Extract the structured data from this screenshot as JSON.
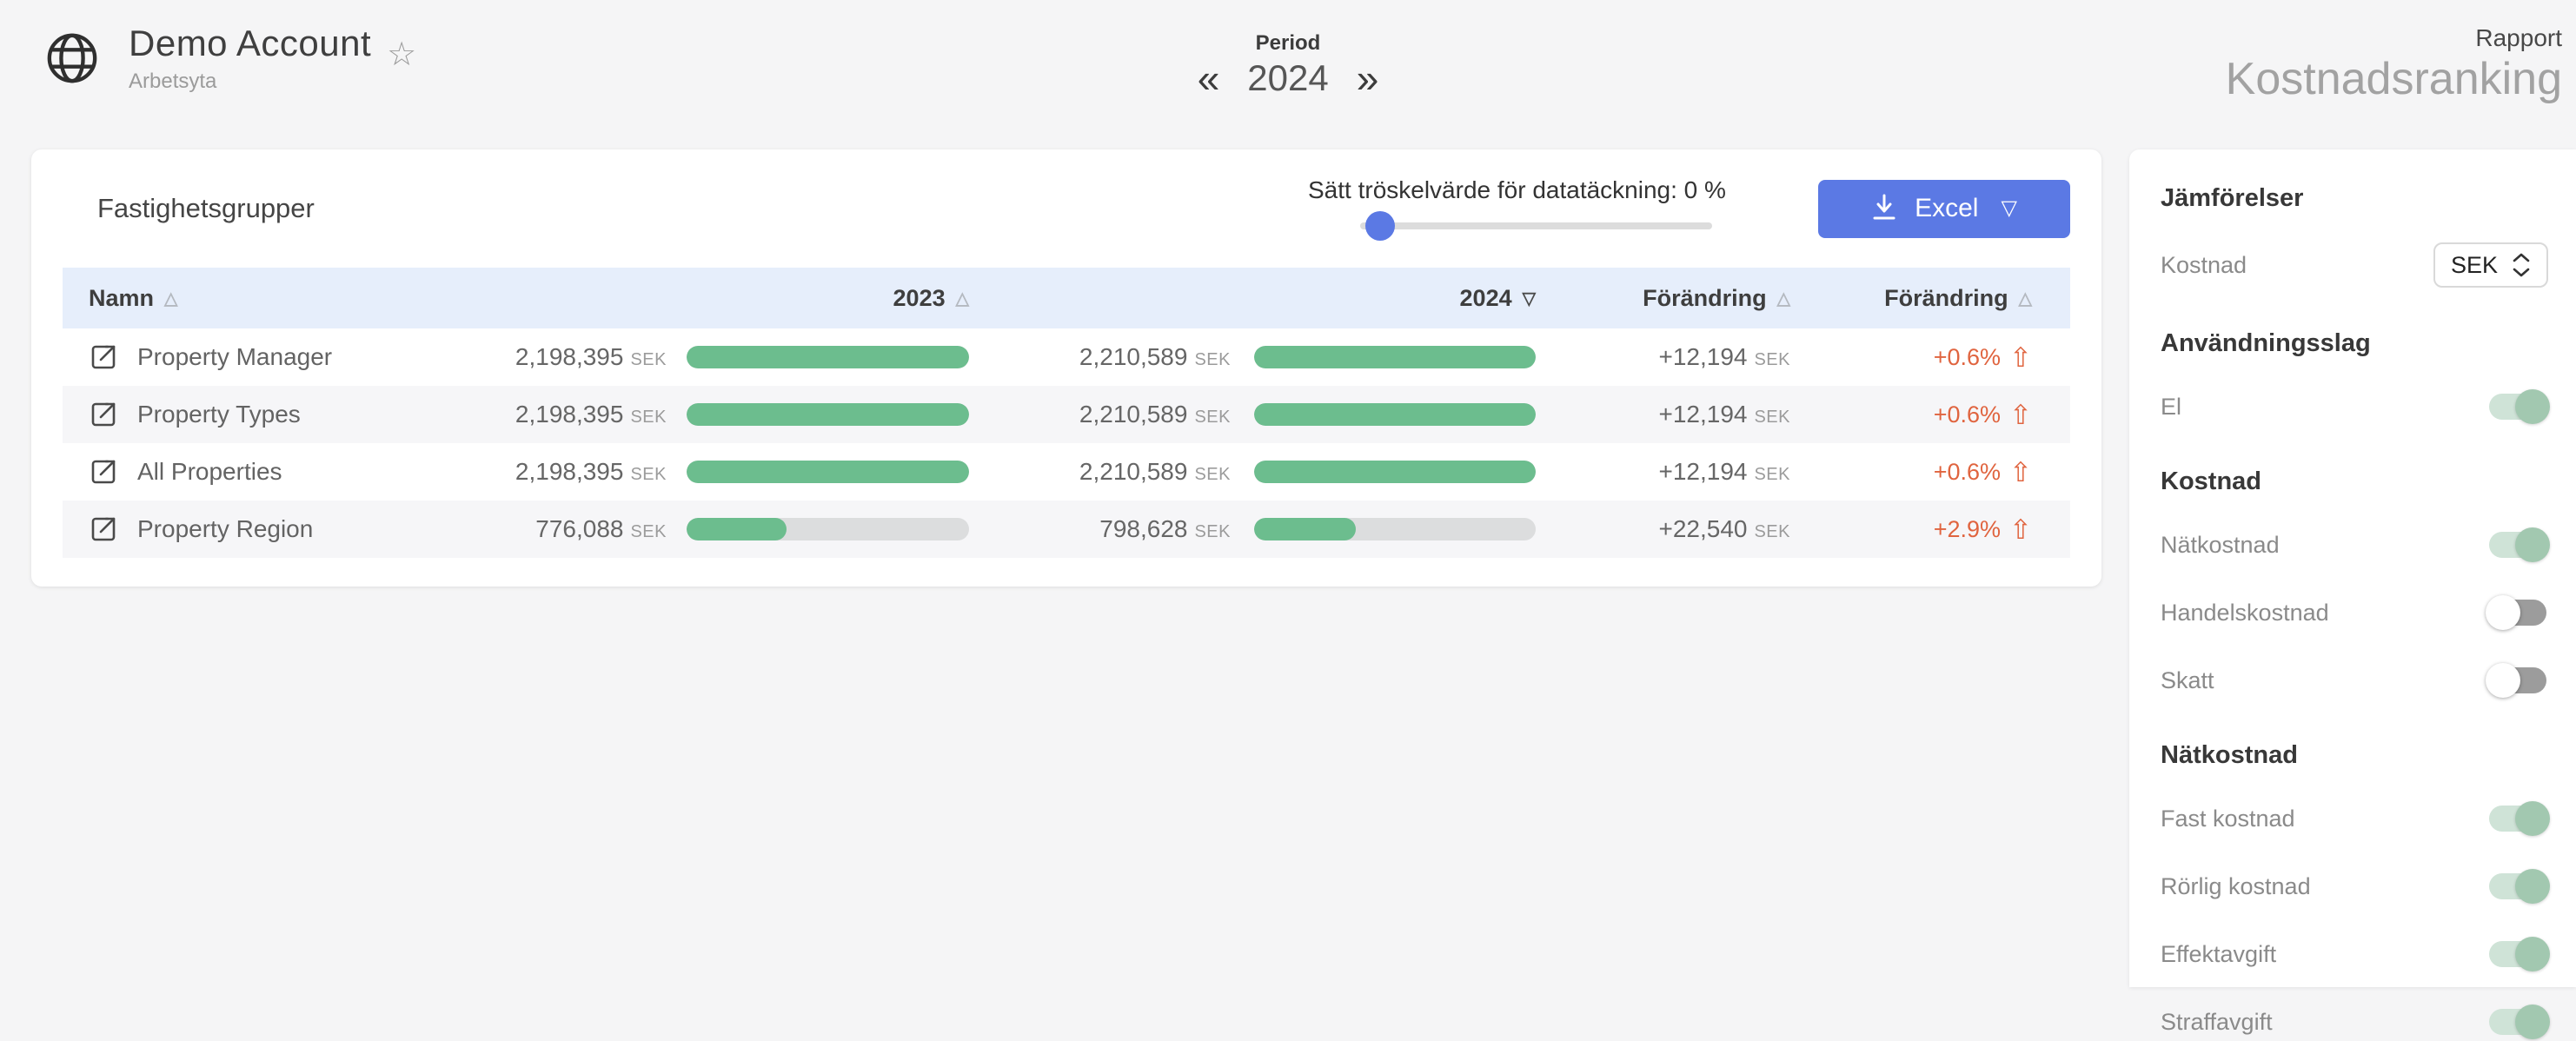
{
  "header": {
    "account_title": "Demo Account",
    "account_subtitle": "Arbetsyta",
    "period_label": "Period",
    "period_value": "2024",
    "report_kicker": "Rapport",
    "report_title": "Kostnadsranking"
  },
  "icons": {
    "star": "☆",
    "prev": "«",
    "next": "»",
    "sort_asc": "△",
    "sort_desc": "▽",
    "excel_caret": "▽",
    "up_arrow": "⇧"
  },
  "panel": {
    "title": "Fastighetsgrupper",
    "threshold_label": "Sätt tröskelvärde för datatäckning: 0 %",
    "threshold_percent": 0,
    "excel_button_label": "Excel"
  },
  "table": {
    "currency": "SEK",
    "columns": {
      "name": "Namn",
      "y2023": "2023",
      "y2024": "2024",
      "change": "Förändring",
      "change_pct": "Förändring"
    },
    "sort": {
      "active_column": "2024",
      "direction": "desc"
    },
    "rows": [
      {
        "name": "Property Manager",
        "y2023": "2,198,395",
        "bar2023": 100,
        "y2024": "2,210,589",
        "bar2024": 100,
        "change": "+12,194",
        "change_pct": "+0.6%"
      },
      {
        "name": "Property Types",
        "y2023": "2,198,395",
        "bar2023": 100,
        "y2024": "2,210,589",
        "bar2024": 100,
        "change": "+12,194",
        "change_pct": "+0.6%"
      },
      {
        "name": "All Properties",
        "y2023": "2,198,395",
        "bar2023": 100,
        "y2024": "2,210,589",
        "bar2024": 100,
        "change": "+12,194",
        "change_pct": "+0.6%"
      },
      {
        "name": "Property Region",
        "y2023": "776,088",
        "bar2023": 35.3,
        "y2024": "798,628",
        "bar2024": 36.1,
        "change": "+22,540",
        "change_pct": "+2.9%"
      }
    ]
  },
  "sidebar": {
    "title": "Jämförelser",
    "cost_row": {
      "label": "Kostnad",
      "value": "SEK"
    },
    "sections": [
      {
        "title": "Användningsslag",
        "items": [
          {
            "label": "El",
            "on": true
          }
        ]
      },
      {
        "title": "Kostnad",
        "items": [
          {
            "label": "Nätkostnad",
            "on": true
          },
          {
            "label": "Handelskostnad",
            "on": false
          },
          {
            "label": "Skatt",
            "on": false
          }
        ]
      },
      {
        "title": "Nätkostnad",
        "items": [
          {
            "label": "Fast kostnad",
            "on": true
          },
          {
            "label": "Rörlig kostnad",
            "on": true
          },
          {
            "label": "Effektavgift",
            "on": true
          },
          {
            "label": "Straffavgift",
            "on": true
          }
        ]
      }
    ]
  },
  "colors": {
    "accent_blue": "#5b79e4",
    "bar_green": "#6cbd8e",
    "toggle_green": "#a2c8b0",
    "change_orange": "#e0643f",
    "table_header_bg": "#e6eefb"
  }
}
